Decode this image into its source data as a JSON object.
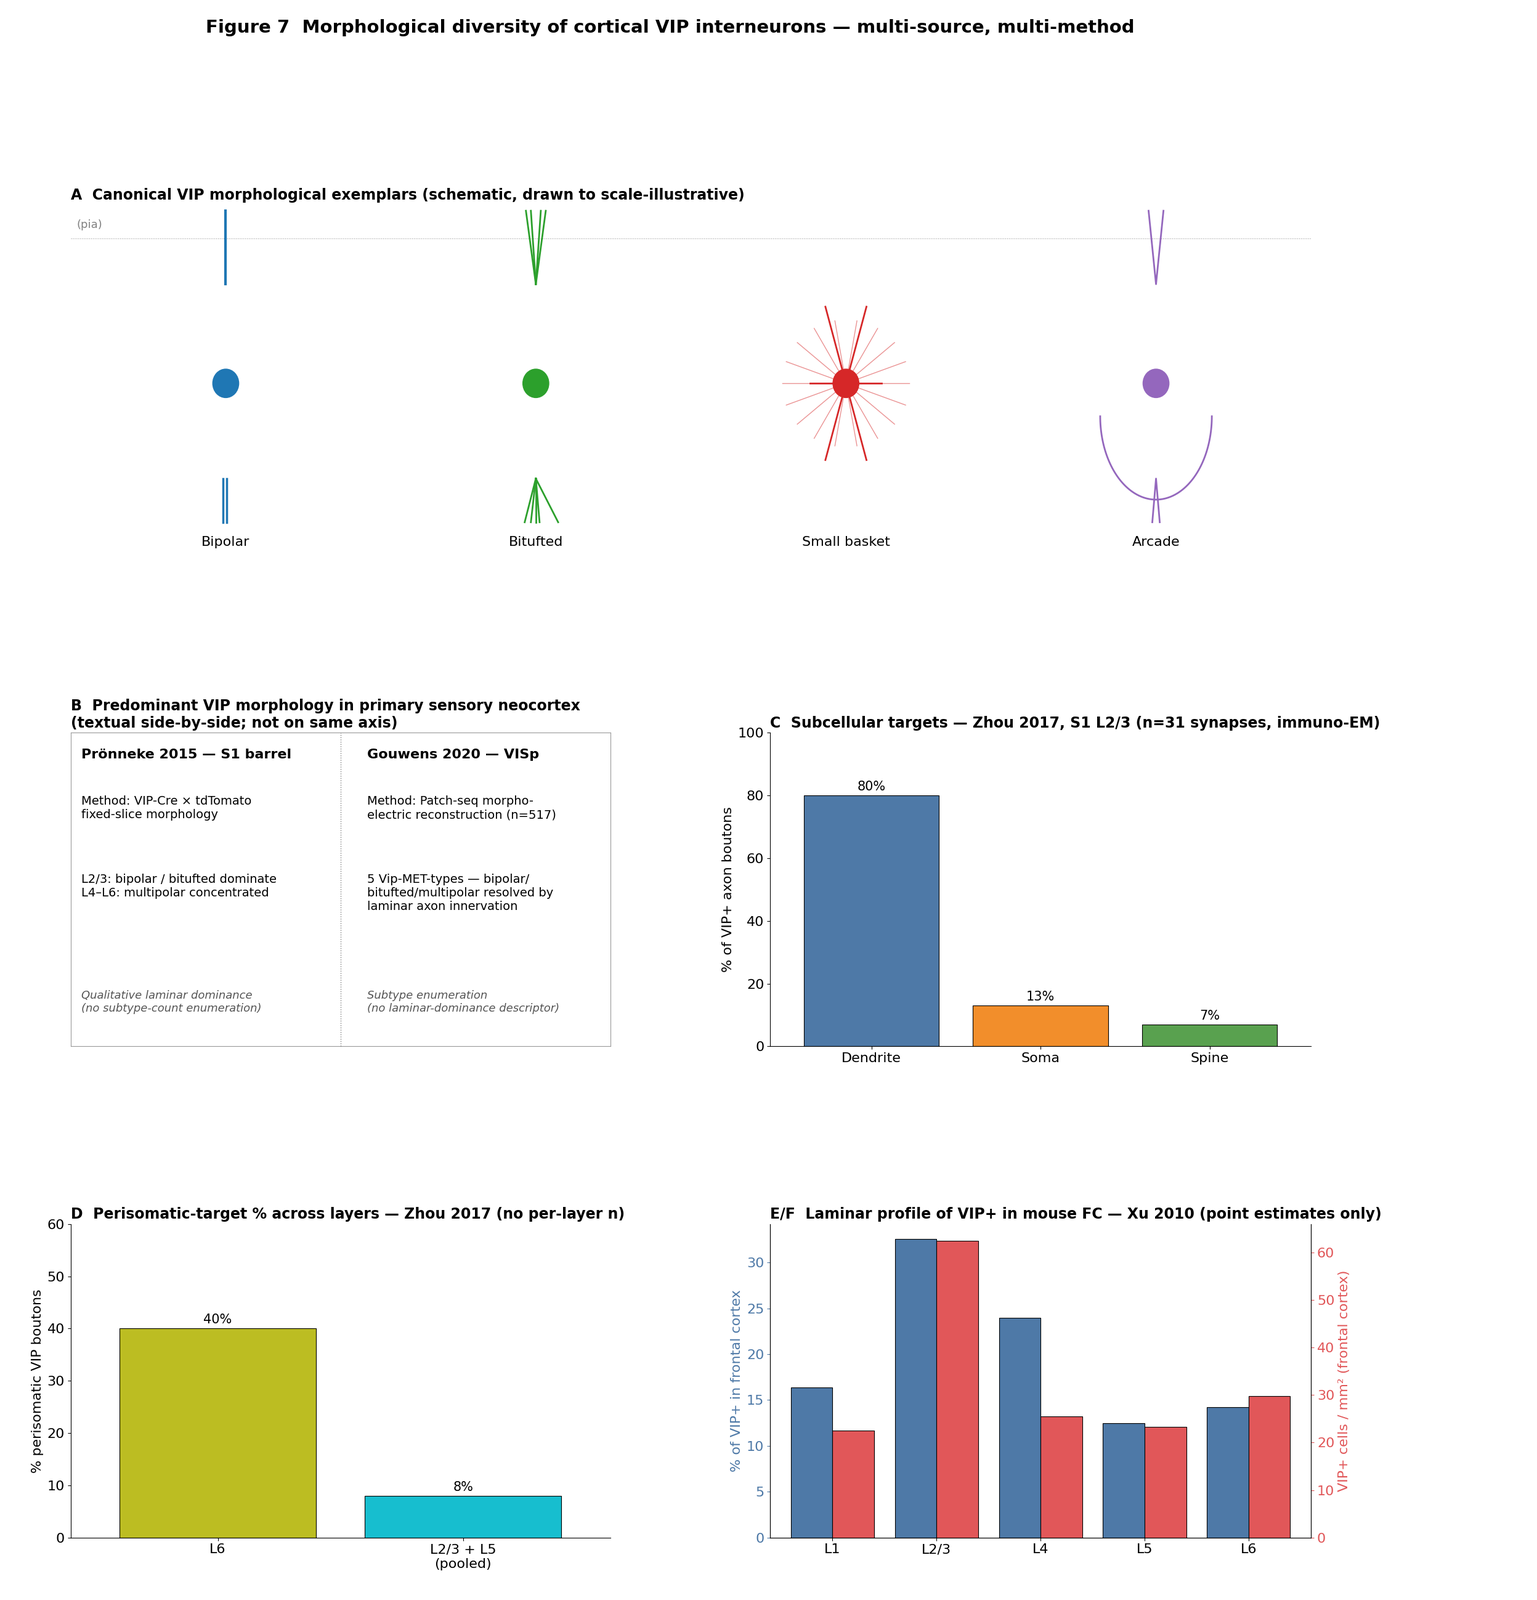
{
  "figure_title": "Figure 7  Morphological diversity of cortical VIP interneurons — multi-source, multi-method",
  "panel_a": {
    "title": "A  Canonical VIP morphological exemplars (schematic, drawn to scale-illustrative)",
    "pia_label": "(pia)",
    "exemplars": [
      {
        "label": "Bipolar",
        "color": "#1f77b4"
      },
      {
        "label": "Bitufted",
        "color": "#2ca02c"
      },
      {
        "label": "Small basket",
        "color": "#d62728"
      },
      {
        "label": "Arcade",
        "color": "#9467bd"
      }
    ]
  },
  "panel_b": {
    "title": "B  Predominant VIP morphology in primary sensory neocortex\n(textual side-by-side; not on same axis)",
    "columns": [
      {
        "heading": "Prönneke 2015 — S1 barrel",
        "method": "Method: VIP-Cre × tdTomato\nfixed-slice morphology",
        "finding": "L2/3: bipolar / bitufted dominate\nL4–L6: multipolar concentrated",
        "note": "Qualitative laminar dominance\n(no subtype-count enumeration)"
      },
      {
        "heading": "Gouwens 2020 — VISp",
        "method": "Method: Patch-seq morpho-\nelectric reconstruction (n=517)",
        "finding": "5 Vip-MET-types — bipolar/\nbitufted/multipolar resolved by\nlaminar axon innervation",
        "note": "Subtype enumeration\n(no laminar-dominance descriptor)"
      }
    ]
  },
  "chart_data": [
    {
      "type": "bar",
      "title": "C  Subcellular targets — Zhou 2017, S1 L2/3 (n=31 synapses, immuno-EM)",
      "categories": [
        "Dendrite",
        "Soma",
        "Spine"
      ],
      "values": [
        80,
        13,
        7
      ],
      "value_labels": [
        "80%",
        "13%",
        "7%"
      ],
      "data_labels": true,
      "colors": [
        "#4e79a7",
        "#f28e2b",
        "#59a14f"
      ],
      "ylabel": "% of VIP+ axon boutons",
      "ylim": [
        0,
        100
      ],
      "yticks": [
        0,
        20,
        40,
        60,
        80,
        100
      ]
    },
    {
      "type": "bar",
      "title": "D  Perisomatic-target % across layers — Zhou 2017 (no per-layer n)",
      "categories": [
        "L6",
        "L2/3 + L5\n(pooled)"
      ],
      "values": [
        40,
        8
      ],
      "value_labels": [
        "40%",
        "8%"
      ],
      "data_labels": true,
      "colors": [
        "#bcbd22",
        "#17becf"
      ],
      "ylabel": "% perisomatic VIP boutons",
      "ylim": [
        0,
        60
      ],
      "yticks": [
        0,
        10,
        20,
        30,
        40,
        50,
        60
      ]
    },
    {
      "type": "bar",
      "title": "E/F  Laminar profile of VIP+ in mouse FC — Xu 2010 (point estimates only)",
      "categories": [
        "L1",
        "L2/3",
        "L4",
        "L5",
        "L6"
      ],
      "series": [
        {
          "color": "#4e79a7",
          "values": [
            16.4,
            32.6,
            24.0,
            12.5,
            14.2
          ]
        },
        {
          "color": "#e15759",
          "values": [
            22.5,
            62.5,
            25.5,
            23.3,
            29.8
          ],
          "axis": "y2"
        }
      ],
      "ylabel": "% of VIP+ in frontal cortex",
      "y2label": "VIP+ cells / mm² (frontal cortex)",
      "ylim": [
        0,
        34.2
      ],
      "yticks": [
        0,
        5,
        10,
        15,
        20,
        25,
        30
      ],
      "y2lim": [
        0,
        66
      ],
      "y2ticks": [
        0,
        10,
        20,
        30,
        40,
        50,
        60
      ]
    }
  ]
}
